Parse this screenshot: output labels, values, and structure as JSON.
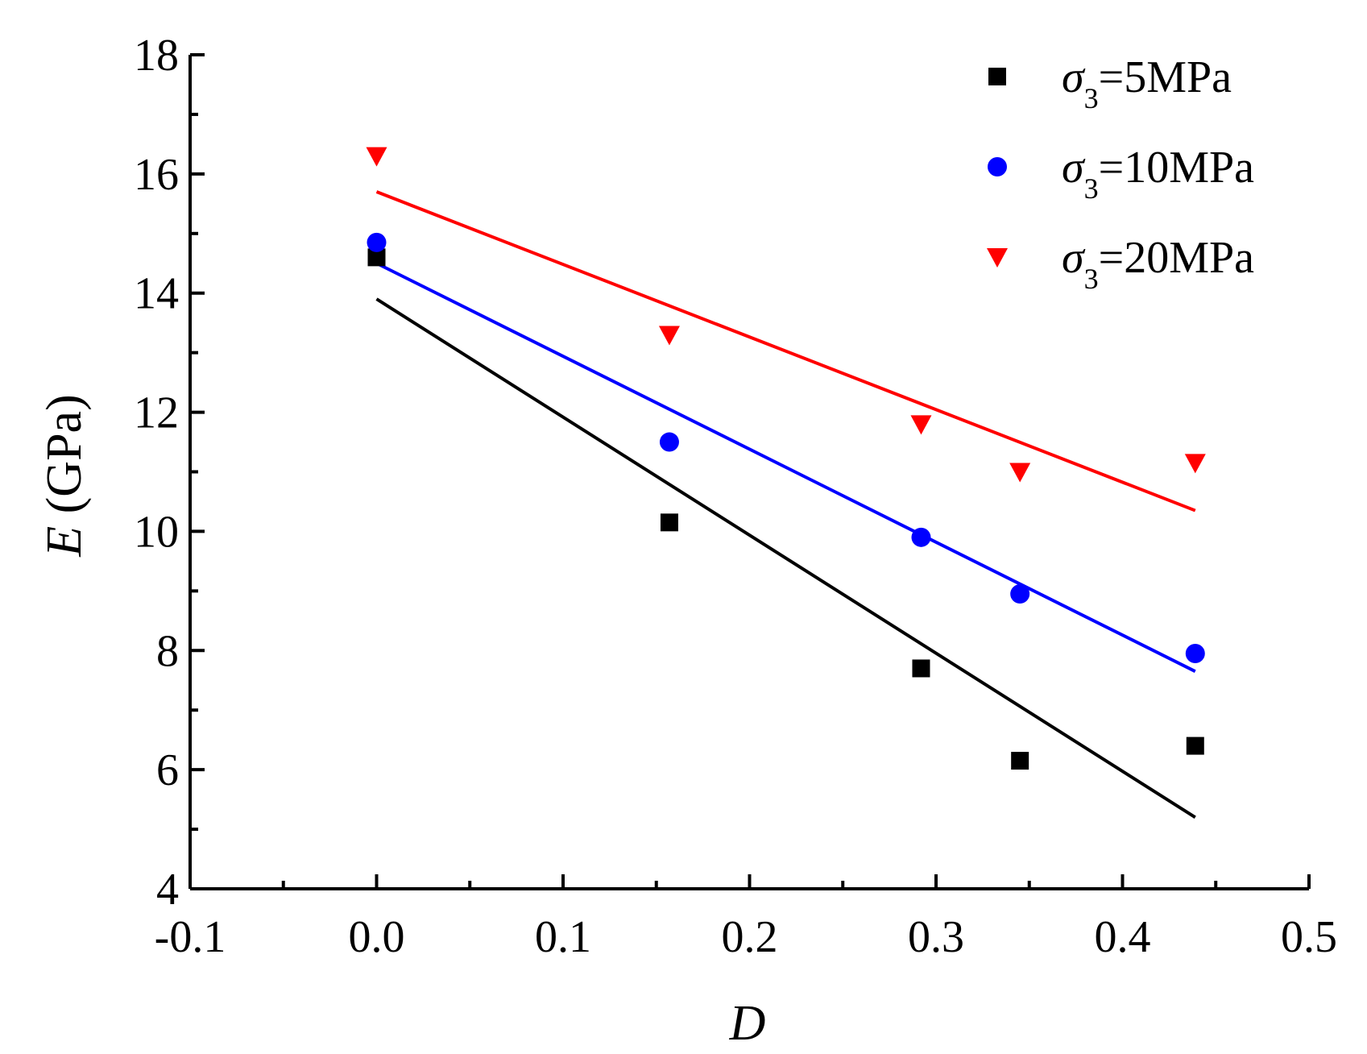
{
  "chart_data": {
    "type": "scatter",
    "xlabel_var": "D",
    "ylabel_var": "E",
    "ylabel_unit": " (GPa)",
    "xlim": [
      -0.1,
      0.5
    ],
    "ylim": [
      4,
      18
    ],
    "x_ticks": [
      -0.1,
      0.0,
      0.1,
      0.2,
      0.3,
      0.4,
      0.5
    ],
    "x_tick_labels": [
      "-0.1",
      "0.0",
      "0.1",
      "0.2",
      "0.3",
      "0.4",
      "0.5"
    ],
    "y_ticks": [
      4,
      6,
      8,
      10,
      12,
      14,
      16,
      18
    ],
    "y_tick_labels": [
      "4",
      "6",
      "8",
      "10",
      "12",
      "14",
      "16",
      "18"
    ],
    "grid": false,
    "legend_position": "top-right",
    "series": [
      {
        "name": "σ3=5MPa",
        "legend_symbol": "σ",
        "legend_sub": "3",
        "legend_rest": "=5MPa",
        "marker": "square",
        "color": "#000000",
        "x": [
          0.0,
          0.157,
          0.292,
          0.345,
          0.439
        ],
        "y": [
          14.6,
          10.15,
          7.7,
          6.15,
          6.4
        ],
        "fit": {
          "x": [
            0.0,
            0.439
          ],
          "y": [
            13.9,
            5.2
          ]
        }
      },
      {
        "name": "σ3=10MPa",
        "legend_symbol": "σ",
        "legend_sub": "3",
        "legend_rest": "=10MPa",
        "marker": "circle",
        "color": "#0000ff",
        "x": [
          0.0,
          0.157,
          0.292,
          0.345,
          0.439
        ],
        "y": [
          14.85,
          11.5,
          9.9,
          8.95,
          7.95
        ],
        "fit": {
          "x": [
            0.0,
            0.439
          ],
          "y": [
            14.5,
            7.65
          ]
        }
      },
      {
        "name": "σ3=20MPa",
        "legend_symbol": "σ",
        "legend_sub": "3",
        "legend_rest": "=20MPa",
        "marker": "triangle-down",
        "color": "#ff0000",
        "x": [
          0.0,
          0.157,
          0.292,
          0.345,
          0.439
        ],
        "y": [
          16.3,
          13.3,
          11.8,
          11.0,
          11.15
        ],
        "fit": {
          "x": [
            0.0,
            0.439
          ],
          "y": [
            15.7,
            10.35
          ]
        }
      }
    ]
  }
}
